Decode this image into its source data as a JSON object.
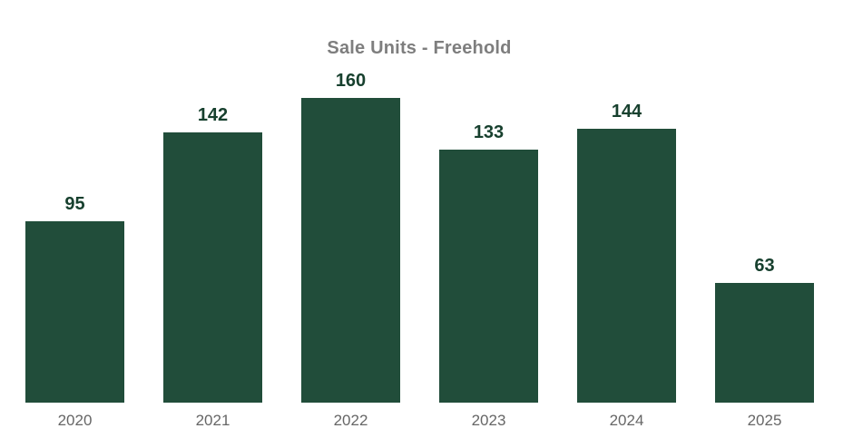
{
  "chart_data": {
    "type": "bar",
    "title": "Sale Units - Freehold",
    "categories": [
      "2020",
      "2021",
      "2022",
      "2023",
      "2024",
      "2025"
    ],
    "values": [
      95,
      142,
      160,
      133,
      144,
      63
    ],
    "xlabel": "",
    "ylabel": "",
    "ylim": [
      0,
      160
    ],
    "grid": false,
    "legend": false,
    "axis_lines": false,
    "colors": {
      "bar": "#214D3A",
      "value_label": "#17402E",
      "title": "#7E7E7E",
      "x_tick_label": "#666666",
      "background": "#FFFFFF"
    }
  }
}
